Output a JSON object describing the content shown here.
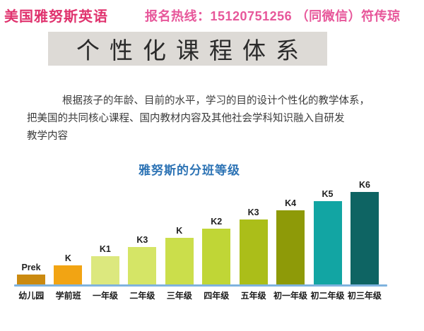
{
  "header": {
    "brand": "美国雅努斯英语",
    "hotline": "报名热线：15120751256 （同微信）符传琼"
  },
  "banner": {
    "title": "个性化课程体系"
  },
  "paragraph": {
    "lines": [
      "根据孩子的年龄、目前的水平，学习的目的设计个性化的教学体系，",
      "把美国的共同核心课程、国内教材内容及其他社会学科知识融入自研发",
      "教学内容"
    ]
  },
  "chart_data": {
    "type": "bar",
    "title": "雅努斯的分班等级",
    "categories": [
      "幼儿园",
      "学前班",
      "一年级",
      "二年级",
      "三年级",
      "四年级",
      "五年级",
      "初一年级",
      "初二年级",
      "初三年级"
    ],
    "bar_labels": [
      "Prek",
      "K",
      "K1",
      "K3",
      "K",
      "K2",
      "K3",
      "K4",
      "K5",
      "K6"
    ],
    "values": [
      1,
      2,
      3,
      4,
      5,
      6,
      7,
      8,
      9,
      10
    ],
    "bar_colors": [
      "#CB8A10",
      "#F2A413",
      "#DCE87E",
      "#D5E566",
      "#CBDE4B",
      "#C0D636",
      "#ABBE19",
      "#8E9A08",
      "#12A5A3",
      "#0E6463"
    ],
    "axis_color": "#7FB3DE",
    "xlabel": "",
    "ylabel": "",
    "legend": false,
    "grid": false
  },
  "colors": {
    "brand_red": "#E0336E",
    "hotline_pink": "#E7579A",
    "banner_bg": "#DDDAD6",
    "banner_text": "#2A2A2A",
    "body_text": "#3B3B3B",
    "chart_title_blue": "#2E74B5"
  }
}
